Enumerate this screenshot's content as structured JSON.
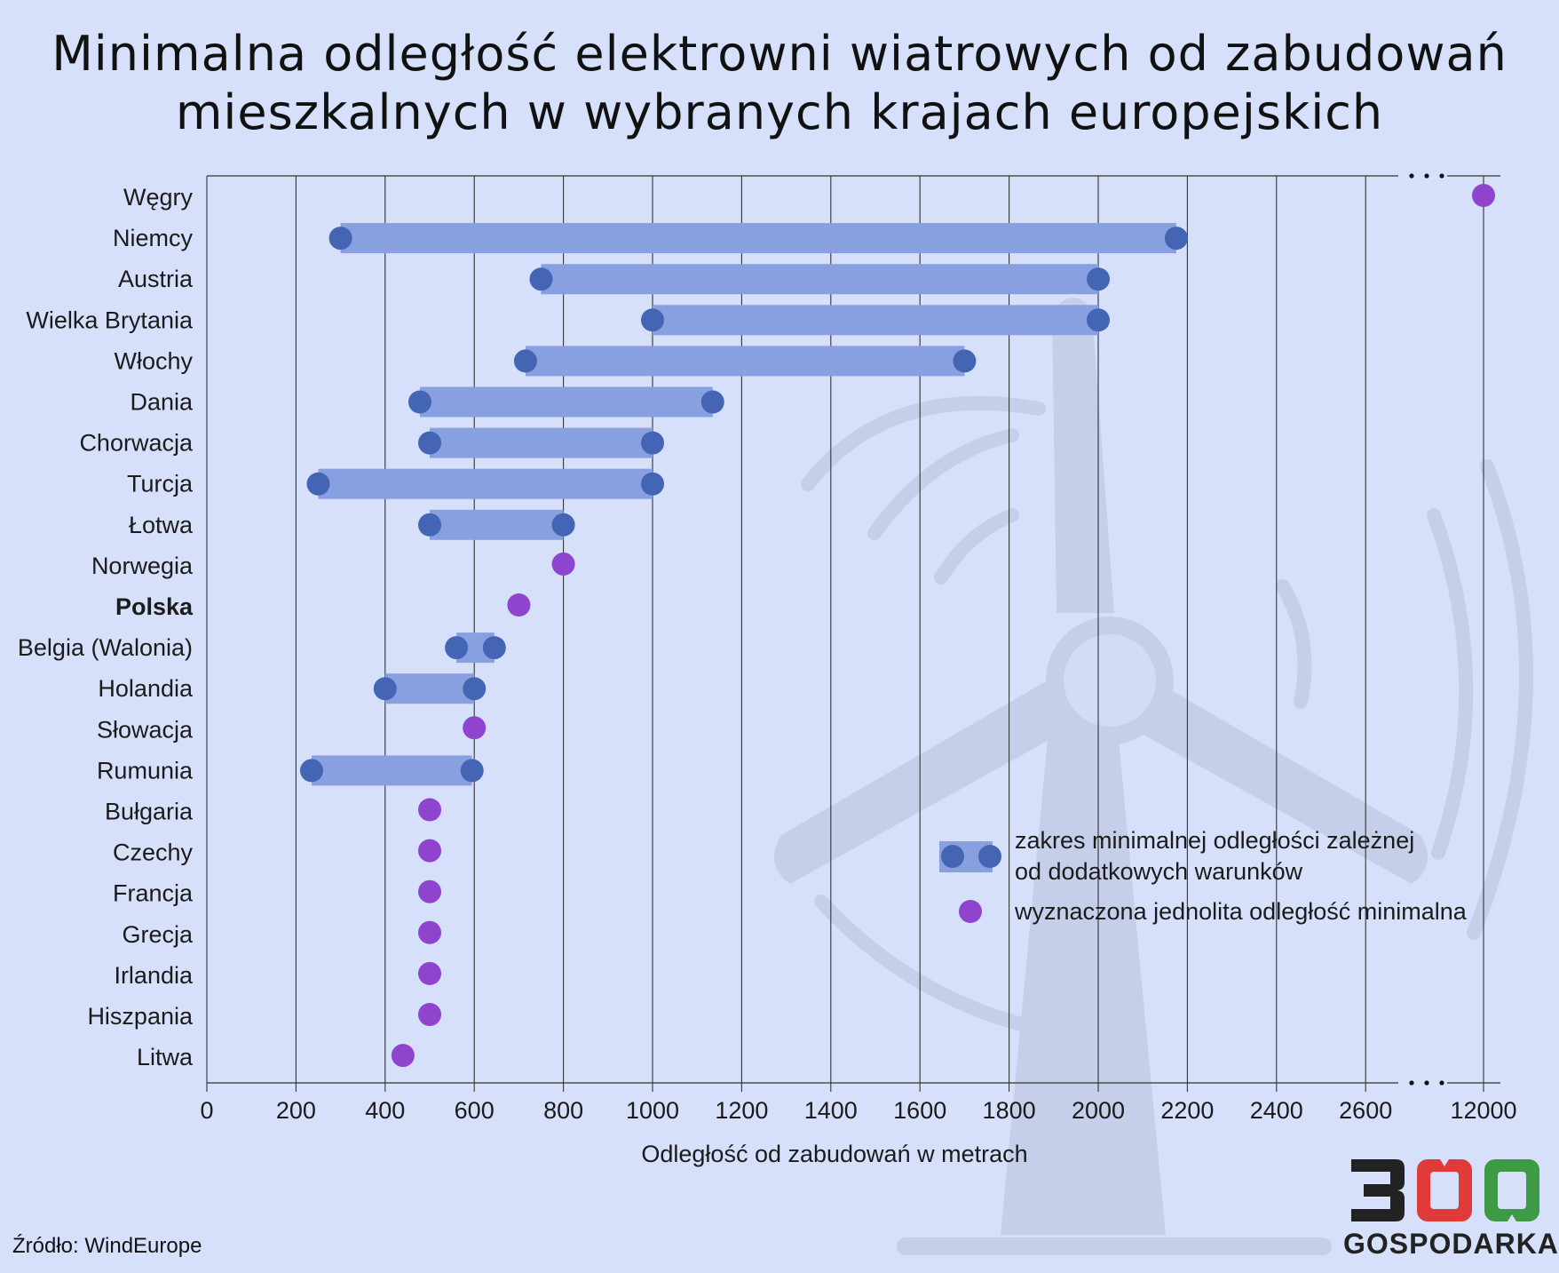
{
  "title_lines": [
    "Minimalna odległość elektrowni wiatrowych od zabudowań",
    "mieszkalnych w wybranych krajach europejskich"
  ],
  "source": "Źródło: WindEurope",
  "logo": {
    "number": "300",
    "text": "GOSPODARKA"
  },
  "legend": {
    "range_lines": [
      "zakres minimalnej odległości zależnej",
      "od dodatkowych warunków"
    ],
    "point": "wyznaczona jednolita odległość minimalna"
  },
  "colors": {
    "background": "#d7e0fa",
    "range_bar": "#889fe0",
    "range_dot": "#4464b4",
    "point_dot": "#8e44cc",
    "watermark": "#c5cfe9",
    "grid": "#333333",
    "logo_black": "#222222",
    "logo_red": "#e03a3a",
    "logo_green": "#3f9a45"
  },
  "chart_data": {
    "type": "range-dot",
    "xlabel": "Odległość od zabudowań w metrach",
    "x_ticks": [
      0,
      200,
      400,
      600,
      800,
      1000,
      1200,
      1400,
      1600,
      1800,
      2000,
      2200,
      2400,
      2600,
      12000
    ],
    "x_axis_break": "between 2600 and 12000",
    "grid": true,
    "legend_position": "bottom-right",
    "rows": [
      {
        "country": "Węgry",
        "type": "point",
        "value": 12000
      },
      {
        "country": "Niemcy",
        "type": "range",
        "min": 300,
        "max": 2175
      },
      {
        "country": "Austria",
        "type": "range",
        "min": 750,
        "max": 2000
      },
      {
        "country": "Wielka Brytania",
        "type": "range",
        "min": 1000,
        "max": 2000
      },
      {
        "country": "Włochy",
        "type": "range",
        "min": 715,
        "max": 1700
      },
      {
        "country": "Dania",
        "type": "range",
        "min": 478,
        "max": 1135
      },
      {
        "country": "Chorwacja",
        "type": "range",
        "min": 500,
        "max": 1000
      },
      {
        "country": "Turcja",
        "type": "range",
        "min": 250,
        "max": 1000
      },
      {
        "country": "Łotwa",
        "type": "range",
        "min": 500,
        "max": 800
      },
      {
        "country": "Norwegia",
        "type": "point",
        "value": 800
      },
      {
        "country": "Polska",
        "type": "point",
        "value": 700,
        "highlight": true
      },
      {
        "country": "Belgia (Walonia)",
        "type": "range",
        "min": 560,
        "max": 645
      },
      {
        "country": "Holandia",
        "type": "range",
        "min": 400,
        "max": 600
      },
      {
        "country": "Słowacja",
        "type": "point",
        "value": 600
      },
      {
        "country": "Rumunia",
        "type": "range",
        "min": 235,
        "max": 595
      },
      {
        "country": "Bułgaria",
        "type": "point",
        "value": 500
      },
      {
        "country": "Czechy",
        "type": "point",
        "value": 500
      },
      {
        "country": "Francja",
        "type": "point",
        "value": 500
      },
      {
        "country": "Grecja",
        "type": "point",
        "value": 500
      },
      {
        "country": "Irlandia",
        "type": "point",
        "value": 500
      },
      {
        "country": "Hiszpania",
        "type": "point",
        "value": 500
      },
      {
        "country": "Litwa",
        "type": "point",
        "value": 440
      }
    ]
  }
}
